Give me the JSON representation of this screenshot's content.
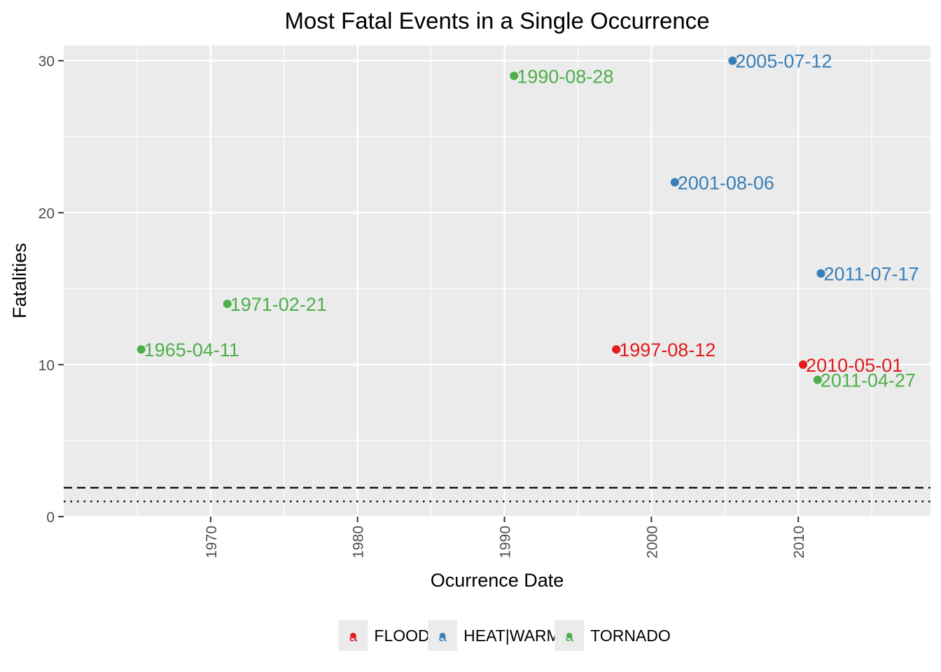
{
  "chart_data": {
    "type": "scatter",
    "title": "Most Fatal Events in a Single Occurrence",
    "xlabel": "Ocurrence Date",
    "ylabel": "Fatalities",
    "xlim": [
      "1960-01-01",
      "2019-01-01"
    ],
    "ylim": [
      0,
      31
    ],
    "x_ticks": [
      1970,
      1980,
      1990,
      2000,
      2010
    ],
    "y_ticks": [
      0,
      10,
      20,
      30
    ],
    "grid": true,
    "legend_position": "bottom",
    "reference_lines": [
      {
        "style": "dashed",
        "y": 1.9
      },
      {
        "style": "dotted",
        "y": 1.0
      }
    ],
    "series": [
      {
        "name": "FLOOD",
        "color": "#e41a1c",
        "points": [
          {
            "date": "1997-08-12",
            "label": "1997-08-12",
            "y": 11
          },
          {
            "date": "2010-05-01",
            "label": "2010-05-01",
            "y": 10
          }
        ]
      },
      {
        "name": "HEAT|WARM",
        "color": "#377eb8",
        "points": [
          {
            "date": "2005-07-12",
            "label": "2005-07-12",
            "y": 30
          },
          {
            "date": "2001-08-06",
            "label": "2001-08-06",
            "y": 22
          },
          {
            "date": "2011-07-17",
            "label": "2011-07-17",
            "y": 16
          }
        ]
      },
      {
        "name": "TORNADO",
        "color": "#4daf4a",
        "points": [
          {
            "date": "1990-08-28",
            "label": "1990-08-28",
            "y": 29
          },
          {
            "date": "1971-02-21",
            "label": "1971-02-21",
            "y": 14
          },
          {
            "date": "1965-04-11",
            "label": "1965-04-11",
            "y": 11
          },
          {
            "date": "2011-04-27",
            "label": "2011-04-27",
            "y": 9
          }
        ]
      }
    ],
    "legend_key_glyph": "a"
  }
}
